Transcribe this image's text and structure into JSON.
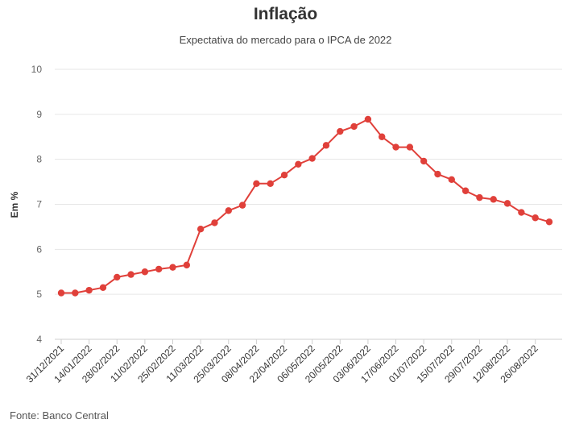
{
  "chart_data": {
    "type": "line",
    "title": "Inflação",
    "subtitle": "Expectativa do mercado para o IPCA de 2022",
    "ylabel": "Em %",
    "source": "Fonte: Banco Central",
    "ylim": [
      4,
      10
    ],
    "yticks": [
      4,
      5,
      6,
      7,
      8,
      9,
      10
    ],
    "x_tick_labels": [
      "31/12/2021",
      "14/01/2022",
      "28/02/2022",
      "11/02/2022",
      "25/02/2022",
      "11/03/2022",
      "25/03/2022",
      "08/04/2022",
      "22/04/2022",
      "06/05/2022",
      "20/05/2022",
      "03/06/2022",
      "17/06/2022",
      "01/07/2022",
      "15/07/2022",
      "29/07/2022",
      "12/08/2022",
      "26/08/2022"
    ],
    "grid": "horizontal",
    "color": "#e0403a",
    "series": [
      {
        "values": [
          5.03,
          5.03,
          5.09,
          5.15,
          5.38,
          5.44,
          5.5,
          5.56,
          5.6,
          5.65,
          6.45,
          6.59,
          6.86,
          6.98,
          7.46,
          7.46,
          7.65,
          7.89,
          8.02,
          8.31,
          8.62,
          8.73,
          8.89,
          8.5,
          8.27,
          8.27,
          7.96,
          7.67,
          7.55,
          7.3,
          7.15,
          7.11,
          7.02,
          6.82,
          6.7,
          6.61
        ]
      }
    ]
  }
}
